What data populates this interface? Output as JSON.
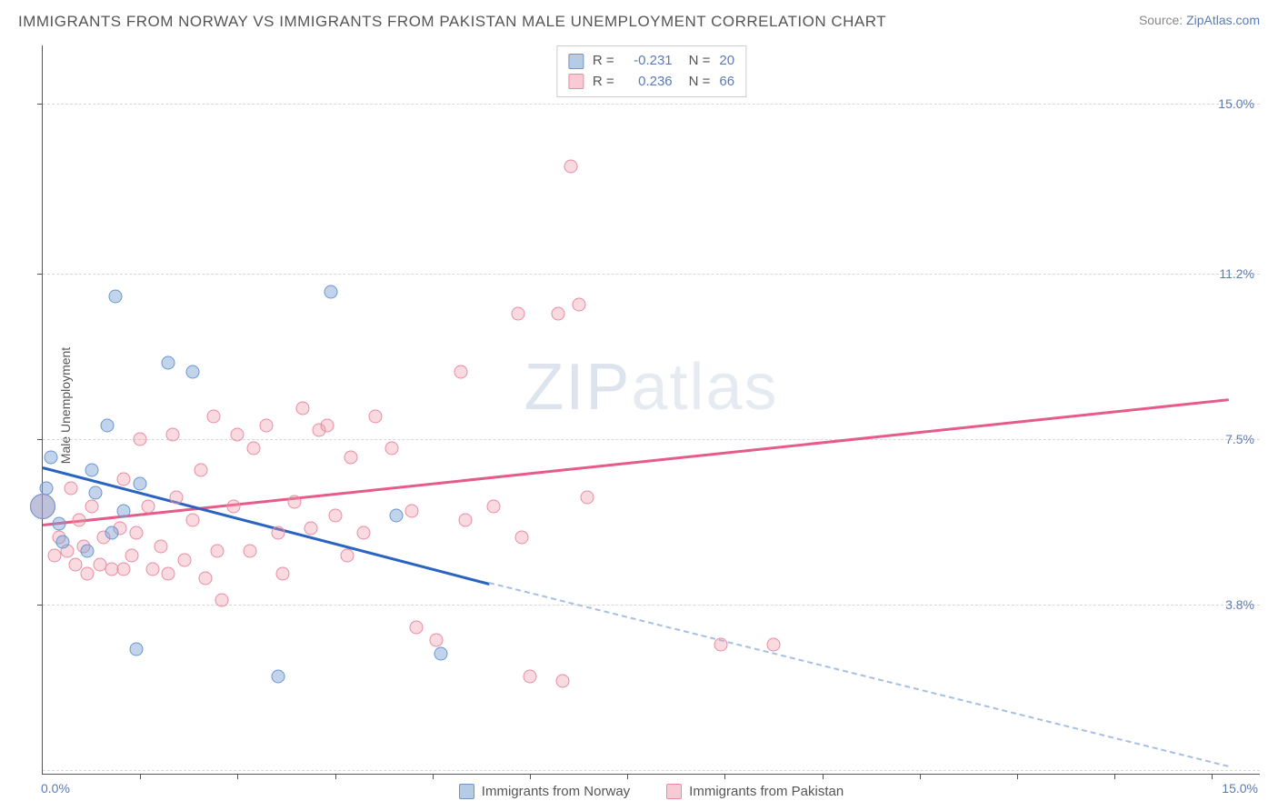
{
  "title": "IMMIGRANTS FROM NORWAY VS IMMIGRANTS FROM PAKISTAN MALE UNEMPLOYMENT CORRELATION CHART",
  "source_prefix": "Source: ",
  "source_link": "ZipAtlas.com",
  "ylabel": "Male Unemployment",
  "watermark_bold": "ZIP",
  "watermark_light": "atlas",
  "chart": {
    "type": "scatter",
    "xlim": [
      0,
      15
    ],
    "ylim": [
      0,
      16.3
    ],
    "x_ticks": [
      1.2,
      2.4,
      3.6,
      4.8,
      6.0,
      7.2,
      8.4,
      9.6,
      10.8,
      12.0,
      13.2,
      14.4
    ],
    "y_ticks": [
      3.8,
      7.5,
      11.2,
      15.0
    ],
    "x_labels": [
      {
        "v": 0.0,
        "t": "0.0%"
      },
      {
        "v": 15.0,
        "t": "15.0%"
      }
    ],
    "y_labels": [
      {
        "v": 3.8,
        "t": "3.8%"
      },
      {
        "v": 7.5,
        "t": "7.5%"
      },
      {
        "v": 11.2,
        "t": "11.2%"
      },
      {
        "v": 15.0,
        "t": "15.0%"
      }
    ],
    "grid_y": [
      0.1,
      3.8,
      7.5,
      11.2,
      15.0
    ],
    "background_color": "#ffffff",
    "grid_color": "#d8d8d8",
    "axis_color": "#555555",
    "series_colors": {
      "blue": "#6a96ce",
      "pink": "#e88ba2"
    },
    "trend_colors": {
      "blue": "#2a64c0",
      "pink": "#e65b87",
      "blue_dash": "#a6bfe3"
    },
    "marker_radius": 7.5
  },
  "legend_top": {
    "rows": [
      {
        "sw": "blue",
        "r_label": "R =",
        "r_val": "-0.231",
        "n_label": "N =",
        "n_val": "20"
      },
      {
        "sw": "pink",
        "r_label": "R =",
        "r_val": "0.236",
        "n_label": "N =",
        "n_val": "66"
      }
    ]
  },
  "legend_bottom": {
    "items": [
      {
        "sw": "blue",
        "label": "Immigrants from Norway"
      },
      {
        "sw": "pink",
        "label": "Immigrants from Pakistan"
      }
    ]
  },
  "trend_lines": {
    "blue_solid": {
      "x1": 0.0,
      "y1": 6.9,
      "x2": 5.5,
      "y2": 4.3
    },
    "blue_dash": {
      "x1": 5.5,
      "y1": 4.3,
      "x2": 14.6,
      "y2": 0.2
    },
    "pink_solid": {
      "x1": 0.0,
      "y1": 5.6,
      "x2": 14.6,
      "y2": 8.4
    }
  },
  "points_blue": [
    {
      "x": 0.0,
      "y": 6.0,
      "big": true
    },
    {
      "x": 0.2,
      "y": 5.6
    },
    {
      "x": 0.25,
      "y": 5.2
    },
    {
      "x": 0.1,
      "y": 7.1
    },
    {
      "x": 0.05,
      "y": 6.4
    },
    {
      "x": 0.6,
      "y": 6.8
    },
    {
      "x": 0.65,
      "y": 6.3
    },
    {
      "x": 0.8,
      "y": 7.8
    },
    {
      "x": 0.85,
      "y": 5.4
    },
    {
      "x": 0.9,
      "y": 10.7
    },
    {
      "x": 1.55,
      "y": 9.2
    },
    {
      "x": 1.85,
      "y": 9.0
    },
    {
      "x": 1.2,
      "y": 6.5
    },
    {
      "x": 1.15,
      "y": 2.8
    },
    {
      "x": 2.9,
      "y": 2.2
    },
    {
      "x": 3.55,
      "y": 10.8
    },
    {
      "x": 4.35,
      "y": 5.8
    },
    {
      "x": 4.9,
      "y": 2.7
    },
    {
      "x": 1.0,
      "y": 5.9
    },
    {
      "x": 0.55,
      "y": 5.0
    }
  ],
  "points_pink": [
    {
      "x": 0.0,
      "y": 6.0,
      "big": true
    },
    {
      "x": 0.2,
      "y": 5.3
    },
    {
      "x": 0.3,
      "y": 5.0
    },
    {
      "x": 0.35,
      "y": 6.4
    },
    {
      "x": 0.45,
      "y": 5.7
    },
    {
      "x": 0.5,
      "y": 5.1
    },
    {
      "x": 0.55,
      "y": 4.5
    },
    {
      "x": 0.6,
      "y": 6.0
    },
    {
      "x": 0.7,
      "y": 4.7
    },
    {
      "x": 0.75,
      "y": 5.3
    },
    {
      "x": 0.85,
      "y": 4.6
    },
    {
      "x": 0.95,
      "y": 5.5
    },
    {
      "x": 1.0,
      "y": 4.6
    },
    {
      "x": 1.0,
      "y": 6.6
    },
    {
      "x": 1.1,
      "y": 4.9
    },
    {
      "x": 1.15,
      "y": 5.4
    },
    {
      "x": 1.2,
      "y": 7.5
    },
    {
      "x": 1.35,
      "y": 4.6
    },
    {
      "x": 1.45,
      "y": 5.1
    },
    {
      "x": 1.55,
      "y": 4.5
    },
    {
      "x": 1.6,
      "y": 7.6
    },
    {
      "x": 1.65,
      "y": 6.2
    },
    {
      "x": 1.75,
      "y": 4.8
    },
    {
      "x": 1.85,
      "y": 5.7
    },
    {
      "x": 1.95,
      "y": 6.8
    },
    {
      "x": 2.0,
      "y": 4.4
    },
    {
      "x": 2.1,
      "y": 8.0
    },
    {
      "x": 2.15,
      "y": 5.0
    },
    {
      "x": 2.2,
      "y": 3.9
    },
    {
      "x": 2.35,
      "y": 6.0
    },
    {
      "x": 2.4,
      "y": 7.6
    },
    {
      "x": 2.55,
      "y": 5.0
    },
    {
      "x": 2.6,
      "y": 7.3
    },
    {
      "x": 2.75,
      "y": 7.8
    },
    {
      "x": 2.9,
      "y": 5.4
    },
    {
      "x": 2.95,
      "y": 4.5
    },
    {
      "x": 3.1,
      "y": 6.1
    },
    {
      "x": 3.2,
      "y": 8.2
    },
    {
      "x": 3.3,
      "y": 5.5
    },
    {
      "x": 3.4,
      "y": 7.7
    },
    {
      "x": 3.5,
      "y": 7.8
    },
    {
      "x": 3.6,
      "y": 5.8
    },
    {
      "x": 3.75,
      "y": 4.9
    },
    {
      "x": 3.8,
      "y": 7.1
    },
    {
      "x": 3.95,
      "y": 5.4
    },
    {
      "x": 4.1,
      "y": 8.0
    },
    {
      "x": 4.3,
      "y": 7.3
    },
    {
      "x": 4.55,
      "y": 5.9
    },
    {
      "x": 4.6,
      "y": 3.3
    },
    {
      "x": 4.85,
      "y": 3.0
    },
    {
      "x": 5.15,
      "y": 9.0
    },
    {
      "x": 5.2,
      "y": 5.7
    },
    {
      "x": 5.55,
      "y": 6.0
    },
    {
      "x": 5.85,
      "y": 10.3
    },
    {
      "x": 5.9,
      "y": 5.3
    },
    {
      "x": 6.0,
      "y": 2.2
    },
    {
      "x": 6.35,
      "y": 10.3
    },
    {
      "x": 6.4,
      "y": 2.1
    },
    {
      "x": 6.5,
      "y": 13.6
    },
    {
      "x": 6.6,
      "y": 10.5
    },
    {
      "x": 6.7,
      "y": 6.2
    },
    {
      "x": 8.35,
      "y": 2.9
    },
    {
      "x": 9.0,
      "y": 2.9
    },
    {
      "x": 1.3,
      "y": 6.0
    },
    {
      "x": 0.15,
      "y": 4.9
    },
    {
      "x": 0.4,
      "y": 4.7
    }
  ]
}
